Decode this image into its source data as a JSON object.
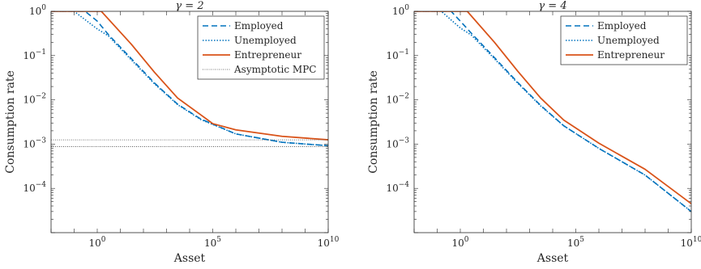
{
  "chart_data": [
    {
      "type": "line",
      "title": "γ = 2",
      "xlabel": "Asset",
      "ylabel": "Consumption rate",
      "xscale": "log",
      "yscale": "log",
      "xlim": [
        0.01,
        10000000000
      ],
      "ylim": [
        1e-05,
        1
      ],
      "grid": false,
      "legend_position": "top-right",
      "xticks": [
        {
          "value": 1,
          "label": "10^0"
        },
        {
          "value": 100000,
          "label": "10^5"
        },
        {
          "value": 10000000000,
          "label": "10^10"
        }
      ],
      "yticks": [
        {
          "value": 1,
          "label": "10^0"
        },
        {
          "value": 0.1,
          "label": "10^-1"
        },
        {
          "value": 0.01,
          "label": "10^-2"
        },
        {
          "value": 0.001,
          "label": "10^-3"
        },
        {
          "value": 0.0001,
          "label": "10^-4"
        }
      ],
      "series": [
        {
          "name": "Employed",
          "color": "#0072BD",
          "dash": "dashed",
          "points": [
            [
              0.01,
              1
            ],
            [
              0.3,
              1
            ],
            [
              1,
              0.6
            ],
            [
              3,
              0.3
            ],
            [
              30,
              0.085
            ],
            [
              300,
              0.024
            ],
            [
              3000,
              0.008
            ],
            [
              30000,
              0.0037
            ],
            [
              1000000,
              0.0017
            ],
            [
              100000000,
              0.0011
            ],
            [
              10000000000,
              0.00092
            ]
          ]
        },
        {
          "name": "Unemployed",
          "color": "#0072BD",
          "dash": "dotted",
          "points": [
            [
              0.01,
              1
            ],
            [
              0.1,
              1
            ],
            [
              1,
              0.4
            ],
            [
              3,
              0.28
            ],
            [
              30,
              0.08
            ],
            [
              300,
              0.023
            ],
            [
              3000,
              0.0078
            ],
            [
              30000,
              0.0036
            ],
            [
              1000000,
              0.0017
            ],
            [
              100000000,
              0.0011
            ],
            [
              10000000000,
              0.00092
            ]
          ]
        },
        {
          "name": "Entrepreneur",
          "color": "#D95319",
          "dash": "solid",
          "points": [
            [
              0.01,
              1
            ],
            [
              1.5,
              1
            ],
            [
              30,
              0.18
            ],
            [
              300,
              0.042
            ],
            [
              3000,
              0.011
            ],
            [
              30000,
              0.0046
            ],
            [
              100000,
              0.0029
            ],
            [
              1000000,
              0.0021
            ],
            [
              100000000,
              0.0015
            ],
            [
              10000000000,
              0.00125
            ]
          ]
        },
        {
          "name": "Asymptotic MPC",
          "color": "#444444",
          "dash": "fine-dotted",
          "hlines": [
            0.00125,
            0.00088
          ]
        }
      ]
    },
    {
      "type": "line",
      "title": "γ = 4",
      "xlabel": "Asset",
      "ylabel": "Consumption rate",
      "xscale": "log",
      "yscale": "log",
      "xlim": [
        0.01,
        10000000000
      ],
      "ylim": [
        1e-05,
        1
      ],
      "grid": false,
      "legend_position": "top-right",
      "xticks": [
        {
          "value": 1,
          "label": "10^0"
        },
        {
          "value": 100000,
          "label": "10^5"
        },
        {
          "value": 10000000000,
          "label": "10^10"
        }
      ],
      "yticks": [
        {
          "value": 1,
          "label": "10^0"
        },
        {
          "value": 0.1,
          "label": "10^-1"
        },
        {
          "value": 0.01,
          "label": "10^-2"
        },
        {
          "value": 0.001,
          "label": "10^-3"
        },
        {
          "value": 0.0001,
          "label": "10^-4"
        }
      ],
      "series": [
        {
          "name": "Employed",
          "color": "#0072BD",
          "dash": "dashed",
          "points": [
            [
              0.01,
              1
            ],
            [
              0.4,
              1
            ],
            [
              1,
              0.6
            ],
            [
              3,
              0.32
            ],
            [
              30,
              0.09
            ],
            [
              300,
              0.025
            ],
            [
              3000,
              0.0075
            ],
            [
              30000,
              0.0026
            ],
            [
              1000000,
              0.0008
            ],
            [
              100000000,
              0.0002
            ],
            [
              10000000000,
              3e-05
            ]
          ]
        },
        {
          "name": "Unemployed",
          "color": "#0072BD",
          "dash": "dotted",
          "points": [
            [
              0.01,
              1
            ],
            [
              0.15,
              1
            ],
            [
              1,
              0.42
            ],
            [
              3,
              0.29
            ],
            [
              30,
              0.085
            ],
            [
              300,
              0.024
            ],
            [
              3000,
              0.0073
            ],
            [
              30000,
              0.0026
            ],
            [
              1000000,
              0.0008
            ],
            [
              100000000,
              0.0002
            ],
            [
              10000000000,
              3e-05
            ]
          ]
        },
        {
          "name": "Entrepreneur",
          "color": "#D95319",
          "dash": "solid",
          "points": [
            [
              0.01,
              1
            ],
            [
              2,
              1
            ],
            [
              30,
              0.2
            ],
            [
              300,
              0.045
            ],
            [
              3000,
              0.011
            ],
            [
              30000,
              0.0035
            ],
            [
              1000000,
              0.00105
            ],
            [
              100000000,
              0.00027
            ],
            [
              10000000000,
              4.5e-05
            ]
          ]
        }
      ]
    }
  ]
}
